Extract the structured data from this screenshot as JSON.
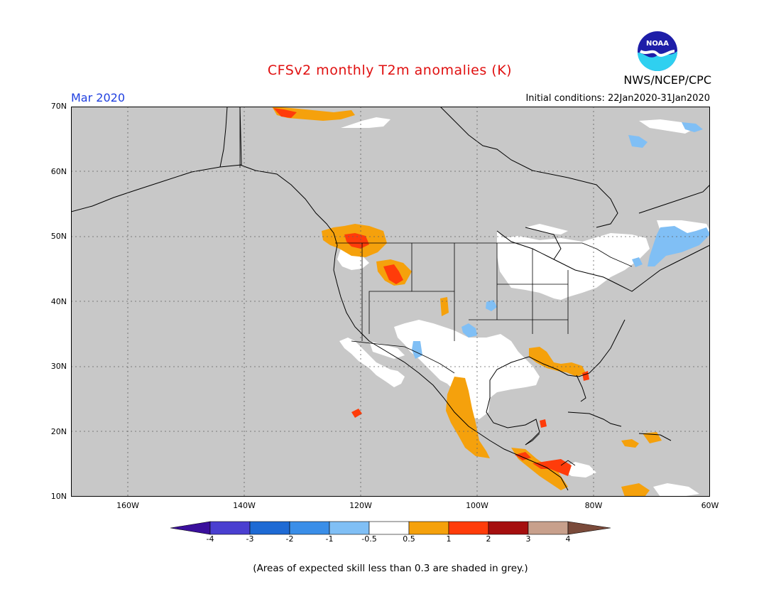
{
  "title": "CFSv2 monthly T2m anomalies (K)",
  "month": "Mar 2020",
  "initial_conditions": "Initial conditions: 22Jan2020-31Jan2020",
  "agency": "NWS/NCEP/CPC",
  "logo_text": "NOAA",
  "footnote": "(Areas of expected skill less than 0.3 are shaded in grey.)",
  "lat_labels": [
    "70N",
    "60N",
    "50N",
    "40N",
    "30N",
    "20N",
    "10N"
  ],
  "lon_labels": [
    "160W",
    "140W",
    "120W",
    "100W",
    "80W",
    "60W"
  ],
  "colorbar": {
    "labels": [
      "-4",
      "-3",
      "-2",
      "-1",
      "-0.5",
      "0.5",
      "1",
      "2",
      "3",
      "4"
    ],
    "colors": [
      "#3a0f9c",
      "#4a3fd0",
      "#1e6ad4",
      "#3a8ee8",
      "#80bff5",
      "#ffffff",
      "#f5a10c",
      "#ff3c0a",
      "#a50f0f",
      "#c8a08c",
      "#7a4a3a"
    ]
  },
  "colors": {
    "title": "#e01010",
    "month": "#2040e0",
    "skill_mask": "#c8c8c8",
    "ocean_mask": "#c8c8c8",
    "neutral": "#ffffff",
    "warm_05_1": "#f5a10c",
    "warm_1_2": "#ff3c0a",
    "cool_05_1": "#80bff5"
  },
  "regions": [
    {
      "name": "Canadian west coast / British Columbia",
      "category": "0.5 to 2"
    },
    {
      "name": "Northern Rockies (Idaho/Montana)",
      "category": "0.5 to 2"
    },
    {
      "name": "Western Mexico",
      "category": "0.5 to 1"
    },
    {
      "name": "Central America",
      "category": "0.5 to 2"
    },
    {
      "name": "Florida / Gulf coast",
      "category": "0.5 to 2"
    },
    {
      "name": "Eastern Canada / Quebec",
      "category": "-1 to -0.5"
    },
    {
      "name": "Great Lakes / Midwest",
      "category": "-0.5 to 0.5"
    },
    {
      "name": "Texas / Northern Mexico",
      "category": "-0.5 to 0.5"
    }
  ]
}
